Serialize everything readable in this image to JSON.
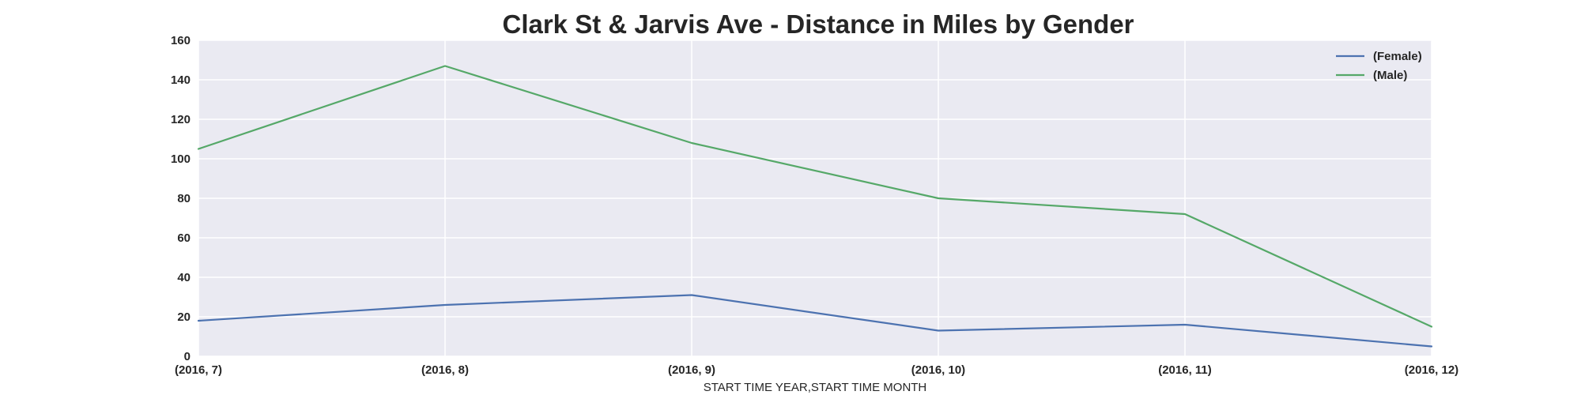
{
  "chart_data": {
    "type": "line",
    "title": "Clark St & Jarvis Ave - Distance in Miles by Gender",
    "xlabel": "START TIME YEAR,START TIME MONTH",
    "ylabel": "",
    "categories": [
      "(2016, 7)",
      "(2016, 8)",
      "(2016, 9)",
      "(2016, 10)",
      "(2016, 11)",
      "(2016, 12)"
    ],
    "ylim": [
      0,
      160
    ],
    "yticks": [
      0,
      20,
      40,
      60,
      80,
      100,
      120,
      140,
      160
    ],
    "grid": true,
    "legend_position": "top-right",
    "background_color": "#eaeaf2",
    "grid_color": "#ffffff",
    "series": [
      {
        "name": "(Female)",
        "color": "#4c72b0",
        "values": [
          18,
          26,
          31,
          13,
          16,
          5
        ]
      },
      {
        "name": "(Male)",
        "color": "#55a868",
        "values": [
          105,
          147,
          108,
          80,
          72,
          15
        ]
      }
    ]
  }
}
